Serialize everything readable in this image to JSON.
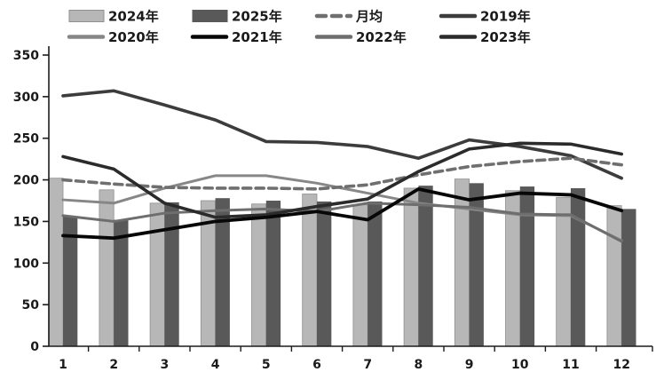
{
  "chart_data": {
    "type": "bar+line",
    "title": "",
    "categories": [
      "1",
      "2",
      "3",
      "4",
      "5",
      "6",
      "7",
      "8",
      "9",
      "10",
      "11",
      "12"
    ],
    "y_axis": {
      "min": 0,
      "max": 350,
      "step": 50,
      "tick_labels": [
        "0",
        "50",
        "100",
        "150",
        "200",
        "250",
        "300",
        "350"
      ]
    },
    "grid": "off",
    "legend_position": "top",
    "legend_rows": [
      [
        "2024年",
        "2025年",
        "月均",
        "2019年"
      ],
      [
        "2020年",
        "2021年",
        "2022年",
        "2023年"
      ]
    ],
    "bar_series": [
      {
        "name": "2024年",
        "color": "#b7b7b7",
        "border": "#8f8f8f",
        "values": [
          202,
          188,
          172,
          175,
          171,
          183,
          170,
          190,
          201,
          187,
          179,
          169
        ]
      },
      {
        "name": "2025年",
        "color": "#595959",
        "border": "#595959",
        "values": [
          156,
          152,
          173,
          178,
          175,
          174,
          174,
          193,
          196,
          192,
          190,
          165
        ]
      }
    ],
    "line_series": [
      {
        "name": "2020年",
        "color": "#878787",
        "width": 3,
        "dashed": false,
        "values": [
          176,
          172,
          190,
          205,
          205,
          196,
          184,
          172,
          165,
          158,
          157,
          127
        ]
      },
      {
        "name": "2022年",
        "color": "#6e6e6e",
        "width": 3,
        "dashed": false,
        "values": [
          157,
          150,
          160,
          163,
          165,
          162,
          172,
          170,
          167,
          159,
          158,
          126
        ]
      },
      {
        "name": "2019年",
        "color": "#3c3c3c",
        "width": 3.6,
        "dashed": false,
        "values": [
          301,
          307,
          290,
          272,
          246,
          245,
          240,
          226,
          248,
          240,
          229,
          202
        ]
      },
      {
        "name": "月均",
        "color": "#6f6f6f",
        "width": 3.6,
        "dashed": true,
        "values": [
          200,
          195,
          191,
          190,
          190,
          189,
          194,
          206,
          216,
          222,
          226,
          218
        ]
      },
      {
        "name": "2023年",
        "color": "#2b2b2b",
        "width": 3.6,
        "dashed": false,
        "values": [
          228,
          213,
          172,
          155,
          158,
          168,
          177,
          210,
          237,
          244,
          243,
          231
        ]
      },
      {
        "name": "2021年",
        "color": "#070707",
        "width": 3.8,
        "dashed": false,
        "values": [
          133,
          130,
          140,
          150,
          155,
          162,
          152,
          189,
          176,
          184,
          182,
          163
        ]
      }
    ],
    "axis_color": "#1c1c1c",
    "label_color": "#1a1a1a"
  }
}
